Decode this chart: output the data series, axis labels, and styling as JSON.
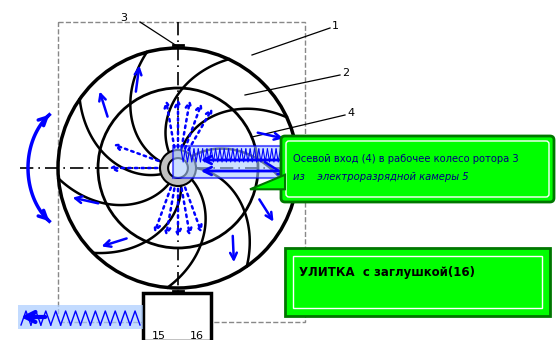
{
  "bg_color": "#ffffff",
  "black": "#000000",
  "blue": "#0000ff",
  "green": "#00ff00",
  "gray": "#888888",
  "callout1_line1": "Осевой вход (4) в рабочее колесо ротора 3",
  "callout1_line2": "из    электроразрядной камеры 5",
  "callout2": "УЛИТКА  с заглушкой(16)",
  "labels": [
    "1",
    "2",
    "3",
    "4",
    "15",
    "16"
  ],
  "fig_w": 5.58,
  "fig_h": 3.4,
  "dpi": 100
}
